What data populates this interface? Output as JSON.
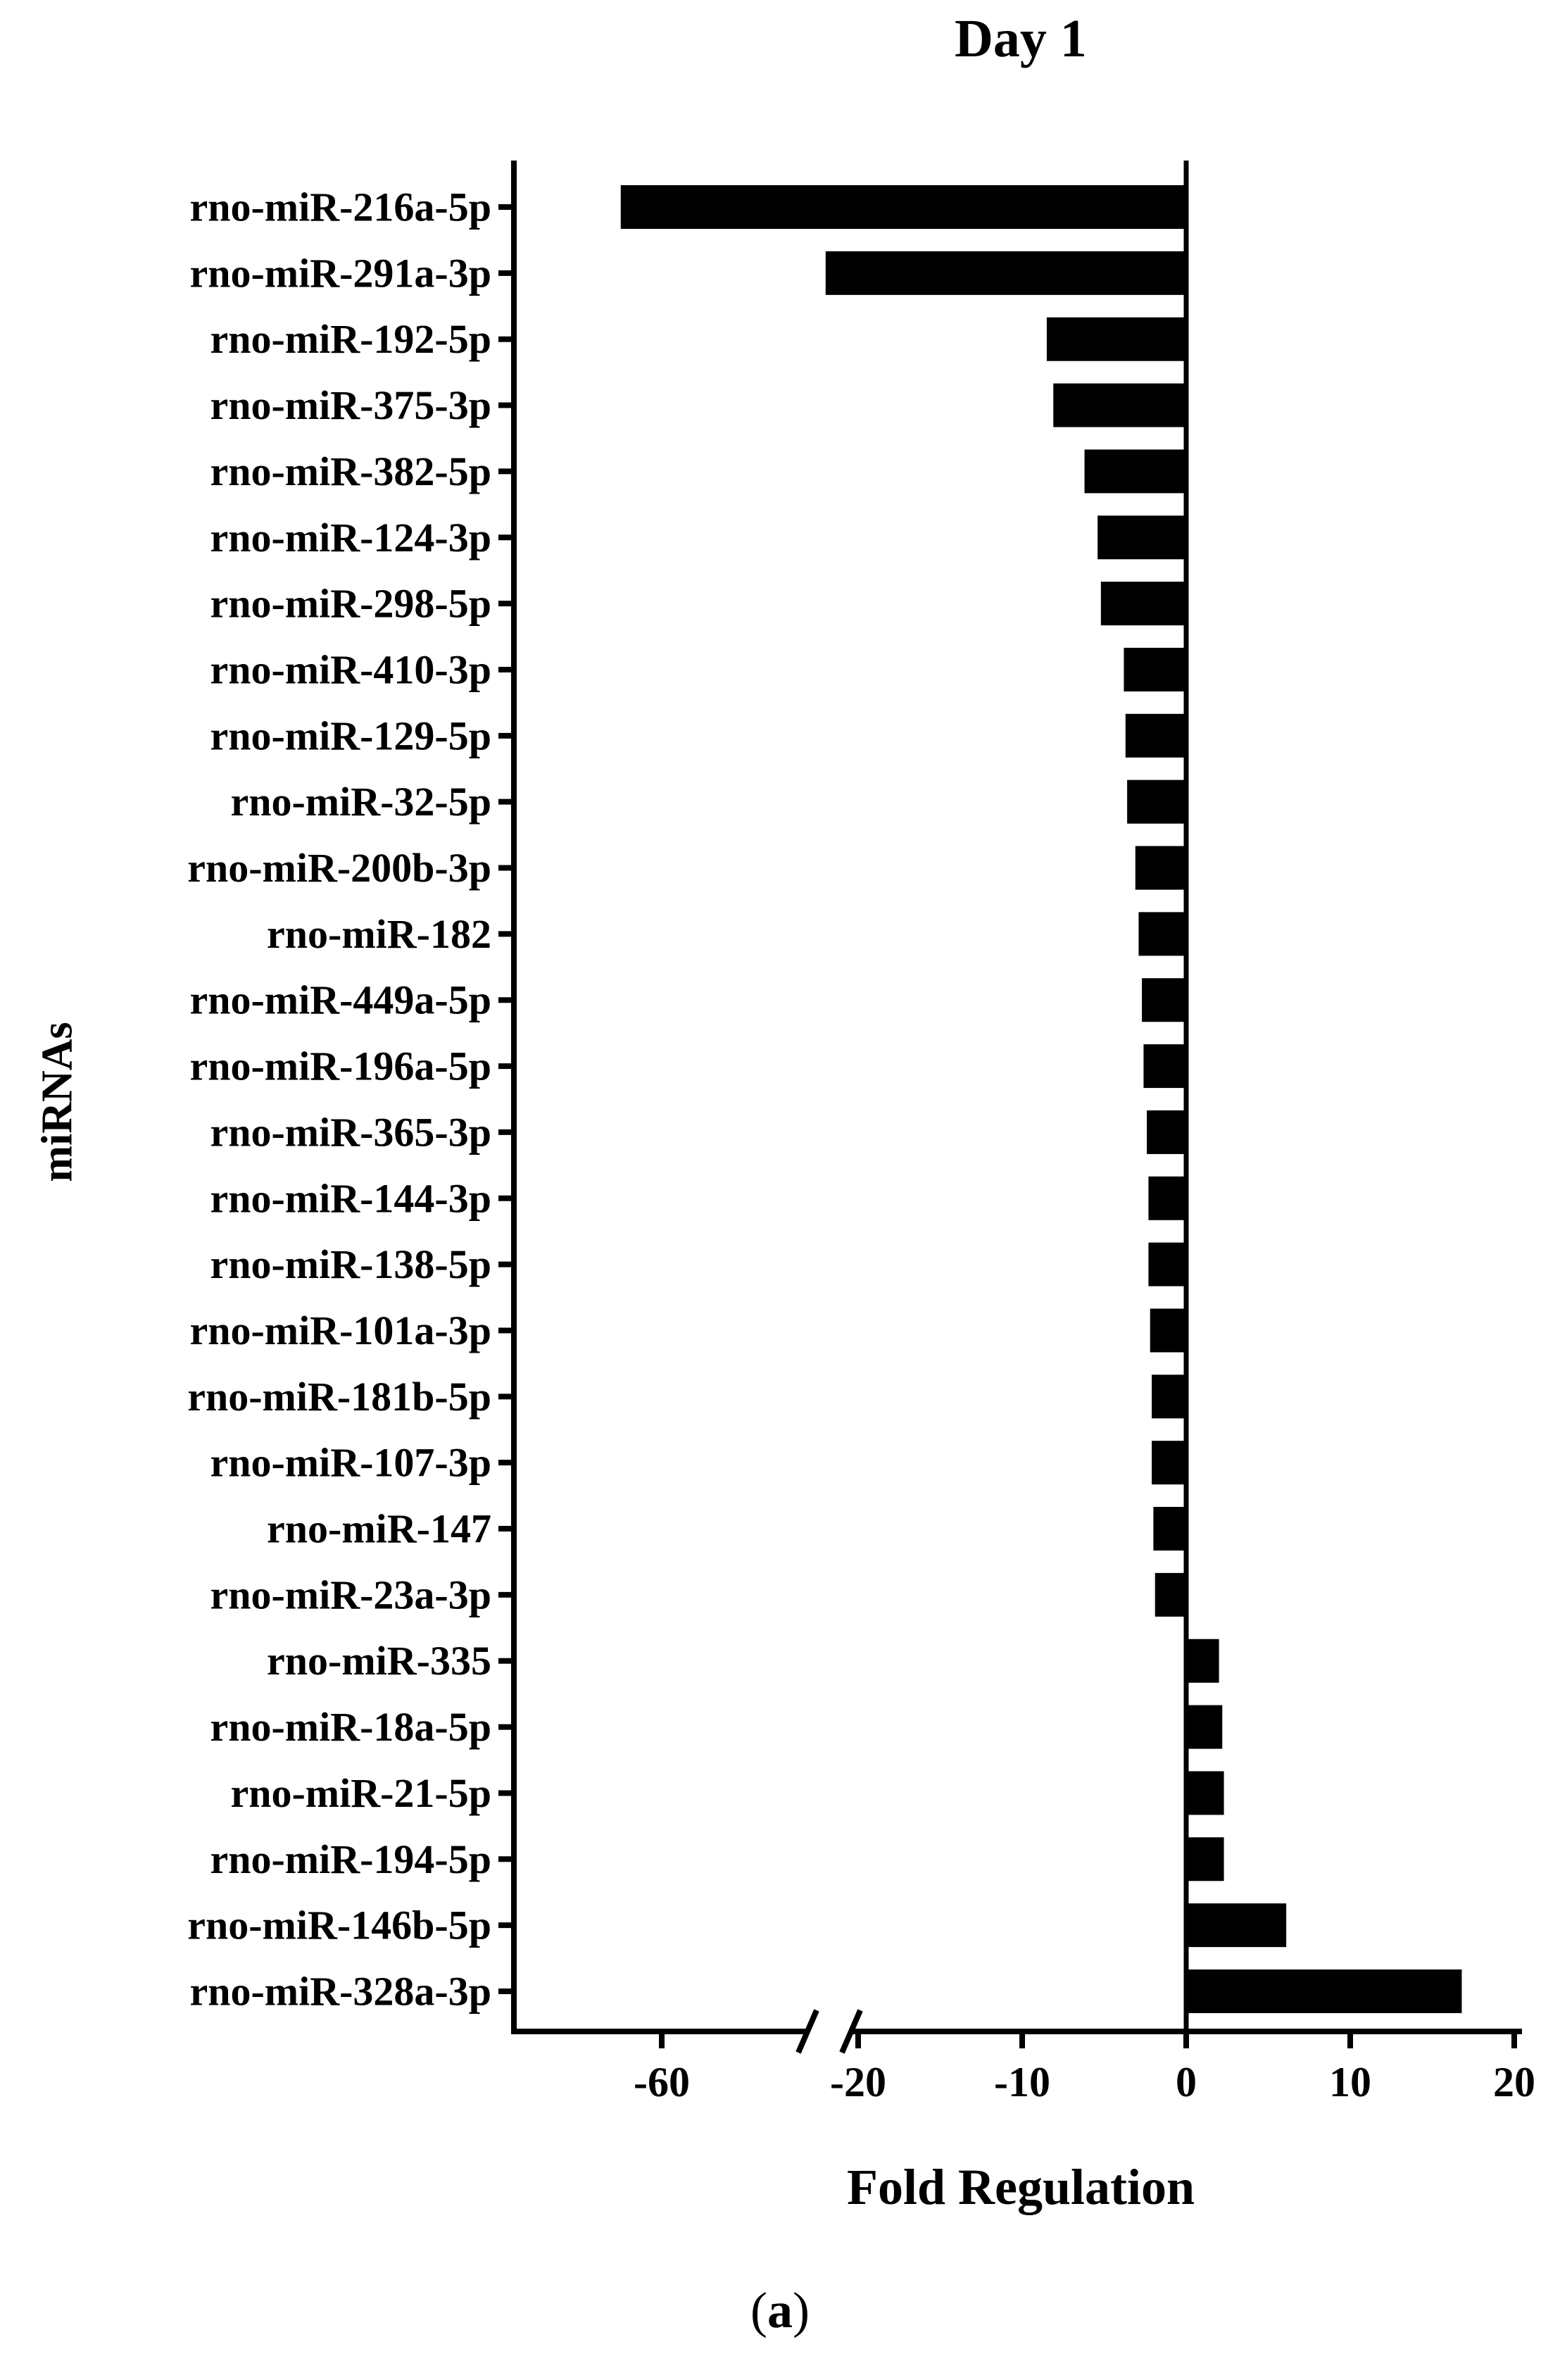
{
  "chart_data": {
    "type": "bar",
    "orientation": "horizontal",
    "title": "Day 1",
    "xlabel": "Fold Regulation",
    "ylabel": "miRNAs",
    "caption_paren_open": "(",
    "caption_letter": "a",
    "caption_paren_close": ")",
    "categories": [
      "rno-miR-216a-5p",
      "rno-miR-291a-3p",
      "rno-miR-192-5p",
      "rno-miR-375-3p",
      "rno-miR-382-5p",
      "rno-miR-124-3p",
      "rno-miR-298-5p",
      "rno-miR-410-3p",
      "rno-miR-129-5p",
      "rno-miR-32-5p",
      "rno-miR-200b-3p",
      "rno-miR-182",
      "rno-miR-449a-5p",
      "rno-miR-196a-5p",
      "rno-miR-365-3p",
      "rno-miR-144-3p",
      "rno-miR-138-5p",
      "rno-miR-101a-3p",
      "rno-miR-181b-5p",
      "rno-miR-107-3p",
      "rno-miR-147",
      "rno-miR-23a-3p",
      "rno-miR-335",
      "rno-miR-18a-5p",
      "rno-miR-21-5p",
      "rno-miR-194-5p",
      "rno-miR-146b-5p",
      "rno-miR-328a-3p"
    ],
    "values": [
      -67,
      -29,
      -8.5,
      -8.1,
      -6.2,
      -5.4,
      -5.2,
      -3.8,
      -3.7,
      -3.6,
      -3.1,
      -2.9,
      -2.7,
      -2.6,
      -2.4,
      -2.3,
      -2.3,
      -2.2,
      -2.1,
      -2.1,
      -2.0,
      -1.9,
      2.0,
      2.2,
      2.3,
      2.3,
      6.1,
      16.8
    ],
    "x_ticks": [
      -60,
      -20,
      -10,
      0,
      10,
      20
    ],
    "x_tick_labels": [
      "-60",
      "-20",
      "-10",
      "0",
      "10",
      "20"
    ],
    "axis_break": "between -60 and -20",
    "xlim": [
      -70,
      20
    ],
    "bar_color": "#000000",
    "grid": false,
    "legend": "none"
  }
}
